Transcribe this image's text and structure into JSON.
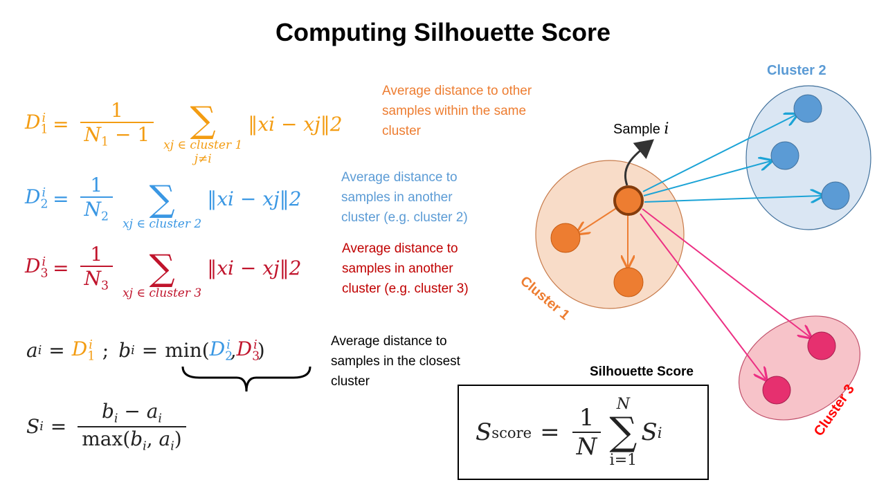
{
  "title": "Computing Silhouette Score",
  "eq1": {
    "lhs": "D",
    "sub": "1",
    "sup": "i",
    "numerator": "1",
    "denominator": "N",
    "den_sub": "1",
    "den_tail": "− 1",
    "sum_sub1": "xj ∈ cluster 1",
    "sum_sub2": "j≠i",
    "norm": "‖xi − xj‖2",
    "description": [
      "Average distance to other",
      "samples within the same",
      "cluster"
    ]
  },
  "eq2": {
    "lhs": "D",
    "sub": "2",
    "sup": "i",
    "numerator": "1",
    "denominator": "N",
    "den_sub": "2",
    "sum_sub": "xj ∈ cluster 2",
    "norm": "‖xi − xj‖2",
    "description": [
      "Average distance to",
      "samples in another",
      "cluster (e.g. cluster 2)"
    ]
  },
  "eq3": {
    "lhs": "D",
    "sub": "3",
    "sup": "i",
    "numerator": "1",
    "denominator": "N",
    "den_sub": "3",
    "sum_sub": "xj ∈ cluster 3",
    "norm": "‖xi − xj‖2",
    "description": [
      "Average distance to",
      "samples in another",
      "cluster (e.g. cluster 3)"
    ]
  },
  "ab_eq": {
    "a": "a",
    "b": "b",
    "separator": ";",
    "min": "min",
    "description": [
      "Average distance to",
      "samples in the closest",
      "cluster"
    ]
  },
  "si_eq": {
    "lhs": "S",
    "numerator": "b",
    "num_minus": "−",
    "denominator_fn": "max"
  },
  "score_box": {
    "heading": "Silhouette Score",
    "lhs": "S",
    "lhs_sub": "score",
    "numerator": "1",
    "denominator": "N",
    "sum_top": "N",
    "sum_bottom": "i=1",
    "rhs": "S"
  },
  "diagram": {
    "sample_label": "Sample",
    "sample_var": "i",
    "cluster1_label": "Cluster 1",
    "cluster2_label": "Cluster 2",
    "cluster3_label": "Cluster 3",
    "colors": {
      "cluster1_fill": "#f8dcc8",
      "cluster1_point": "#ed7d31",
      "cluster2_fill": "#dae6f3",
      "cluster2_point": "#5b9bd5",
      "cluster3_fill": "#f7c3c9",
      "cluster3_point": "#e6306f",
      "arrow_blue": "#1ba3d6",
      "arrow_pink": "#ec2f83",
      "label_red": "#ff0000"
    }
  }
}
